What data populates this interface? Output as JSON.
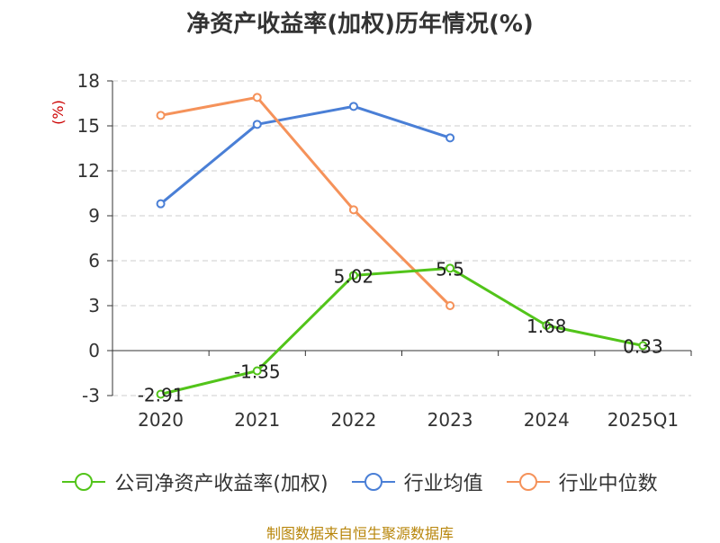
{
  "chart_data": {
    "type": "line",
    "title": "净资产收益率(加权)历年情况(%)",
    "ylabel": "(%)",
    "categories": [
      "2020",
      "2021",
      "2022",
      "2023",
      "2024",
      "2025Q1"
    ],
    "ylim": [
      -3,
      18
    ],
    "yticks": [
      -3,
      0,
      3,
      6,
      9,
      12,
      15,
      18
    ],
    "grid": true,
    "legend_position": "bottom",
    "series": [
      {
        "name": "公司净资产收益率(加权)",
        "color": "#52c41a",
        "values": [
          -2.91,
          -1.35,
          5.02,
          5.5,
          1.68,
          0.33
        ],
        "labels": [
          "-2.91",
          "-1.35",
          "5.02",
          "5.5",
          "1.68",
          "0.33"
        ]
      },
      {
        "name": "行业均值",
        "color": "#4a7fd6",
        "values": [
          9.8,
          15.1,
          16.3,
          14.2,
          null,
          null
        ]
      },
      {
        "name": "行业中位数",
        "color": "#f5925a",
        "values": [
          15.7,
          16.9,
          9.4,
          3.0,
          null,
          null
        ]
      }
    ]
  },
  "source_text": "制图数据来自恒生聚源数据库"
}
